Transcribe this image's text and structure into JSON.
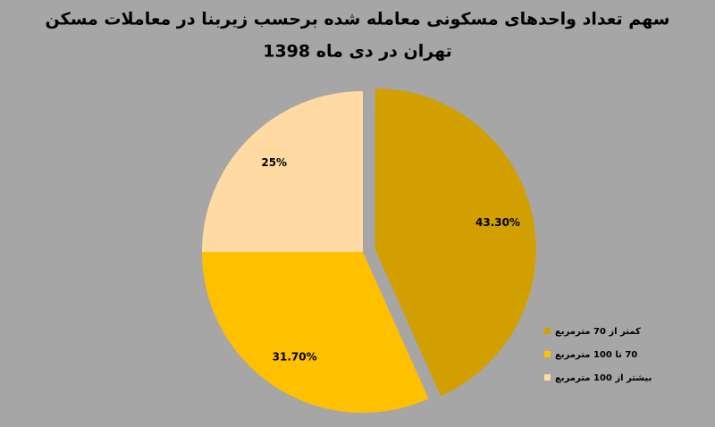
{
  "chart_data": {
    "type": "pie",
    "title": [
      "سهم تعداد واحدهای مسکونی معامله شده برحسب زیربنا در معاملات مسکن",
      "تهران در دی ماه 1398"
    ],
    "categories": [
      "کمتر از 70 مترمربع",
      "70 تا 100 مترمربع",
      "بیشتر از 100 مترمربع"
    ],
    "values": [
      43.3,
      31.7,
      25
    ],
    "value_labels": [
      "43.30%",
      "31.70%",
      "25%"
    ],
    "colors": [
      "#d19f00",
      "#ffc000",
      "#ffdba3"
    ],
    "legend": "right"
  }
}
